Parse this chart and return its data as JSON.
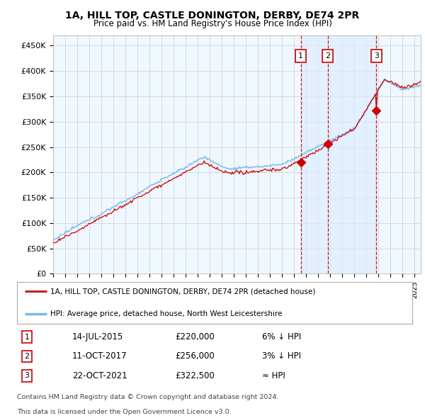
{
  "title": "1A, HILL TOP, CASTLE DONINGTON, DERBY, DE74 2PR",
  "subtitle": "Price paid vs. HM Land Registry's House Price Index (HPI)",
  "ylabel_ticks": [
    "£0",
    "£50K",
    "£100K",
    "£150K",
    "£200K",
    "£250K",
    "£300K",
    "£350K",
    "£400K",
    "£450K"
  ],
  "ytick_values": [
    0,
    50000,
    100000,
    150000,
    200000,
    250000,
    300000,
    350000,
    400000,
    450000
  ],
  "ylim": [
    0,
    470000
  ],
  "xlim_start": 1995.0,
  "xlim_end": 2025.5,
  "hpi_color": "#7ab8e8",
  "hpi_fill_color": "#d8eaf8",
  "price_color": "#cc0000",
  "sale_marker_color": "#cc0000",
  "vline_color": "#cc0000",
  "annotation_box_color": "#cc0000",
  "background_color": "#f0f8ff",
  "shade_color": "#ddeeff",
  "grid_color": "#cccccc",
  "sales": [
    {
      "label": "1",
      "date_num": 2015.54,
      "price": 220000,
      "text": "14-JUL-2015",
      "amount": "£220,000",
      "pct": "6% ↓ HPI"
    },
    {
      "label": "2",
      "date_num": 2017.78,
      "price": 256000,
      "text": "11-OCT-2017",
      "amount": "£256,000",
      "pct": "3% ↓ HPI"
    },
    {
      "label": "3",
      "date_num": 2021.81,
      "price": 322500,
      "text": "22-OCT-2021",
      "amount": "£322,500",
      "pct": "≈ HPI"
    }
  ],
  "legend_entries": [
    {
      "label": "1A, HILL TOP, CASTLE DONINGTON, DERBY, DE74 2PR (detached house)",
      "color": "#cc0000",
      "lw": 1.5
    },
    {
      "label": "HPI: Average price, detached house, North West Leicestershire",
      "color": "#7ab8e8",
      "lw": 2.0
    }
  ],
  "footer": [
    "Contains HM Land Registry data © Crown copyright and database right 2024.",
    "This data is licensed under the Open Government Licence v3.0."
  ]
}
